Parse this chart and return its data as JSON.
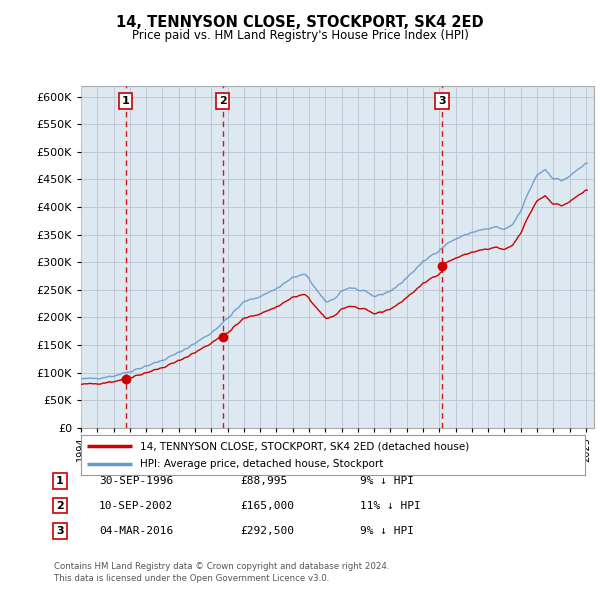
{
  "title": "14, TENNYSON CLOSE, STOCKPORT, SK4 2ED",
  "subtitle": "Price paid vs. HM Land Registry's House Price Index (HPI)",
  "legend_line1": "14, TENNYSON CLOSE, STOCKPORT, SK4 2ED (detached house)",
  "legend_line2": "HPI: Average price, detached house, Stockport",
  "footer_line1": "Contains HM Land Registry data © Crown copyright and database right 2024.",
  "footer_line2": "This data is licensed under the Open Government Licence v3.0.",
  "transactions": [
    {
      "num": 1,
      "date": "30-SEP-1996",
      "price": "£88,995",
      "pct": "9% ↓ HPI",
      "year": 1996.75
    },
    {
      "num": 2,
      "date": "10-SEP-2002",
      "price": "£165,000",
      "pct": "11% ↓ HPI",
      "year": 2002.69
    },
    {
      "num": 3,
      "date": "04-MAR-2016",
      "price": "£292,500",
      "pct": "9% ↓ HPI",
      "year": 2016.17
    }
  ],
  "sold_years": [
    1996.75,
    2002.69,
    2016.17
  ],
  "sold_prices": [
    88995,
    165000,
    292500
  ],
  "xlim": [
    1994.0,
    2025.5
  ],
  "ylim": [
    0,
    620000
  ],
  "yticks": [
    0,
    50000,
    100000,
    150000,
    200000,
    250000,
    300000,
    350000,
    400000,
    450000,
    500000,
    550000,
    600000
  ],
  "xtick_years": [
    1994,
    1995,
    1996,
    1997,
    1998,
    1999,
    2000,
    2001,
    2002,
    2003,
    2004,
    2005,
    2006,
    2007,
    2008,
    2009,
    2010,
    2011,
    2012,
    2013,
    2014,
    2015,
    2016,
    2017,
    2018,
    2019,
    2020,
    2021,
    2022,
    2023,
    2024,
    2025
  ],
  "vline_color": "#cc0000",
  "hpi_color": "#6699cc",
  "price_color": "#cc0000",
  "grid_color": "#c0c8d8",
  "plot_bg": "#dde8f0",
  "hatch_bg": "#c8d0dc",
  "background_color": "#ffffff",
  "hpi_base_year": 1995.0,
  "hpi_base_value": 96500
}
